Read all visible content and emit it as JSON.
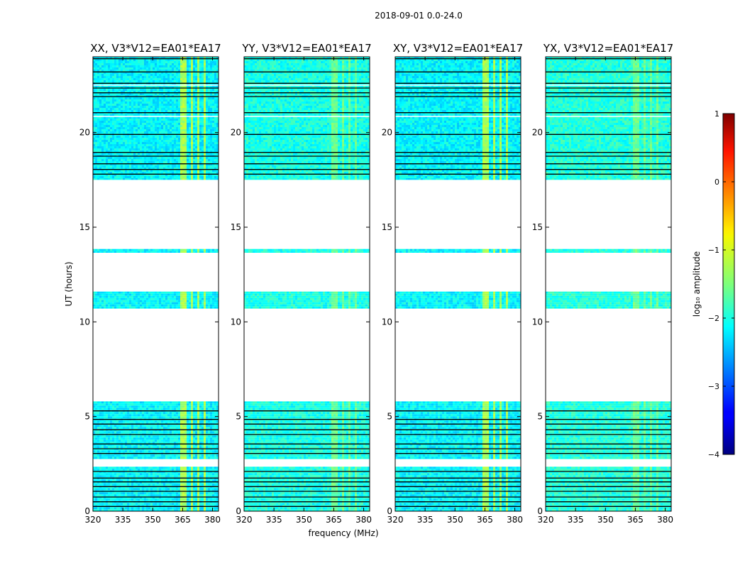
{
  "chart_data": {
    "type": "heatmap",
    "suptitle": "2018-09-01 0.0-24.0",
    "xlabel": "frequency (MHz)",
    "ylabel": "UT (hours)",
    "xlim": [
      320,
      383
    ],
    "ylim": [
      0,
      24
    ],
    "xticks": [
      "320",
      "335",
      "350",
      "365",
      "380"
    ],
    "yticks": [
      "0",
      "5",
      "10",
      "15",
      "20"
    ],
    "panels": [
      {
        "title": "XX, V3*V12=EA01*EA17",
        "base_level": -2.15,
        "rfi_level": -1.3
      },
      {
        "title": "YY, V3*V12=EA01*EA17",
        "base_level": -2.0,
        "rfi_level": -1.6
      },
      {
        "title": "XY, V3*V12=EA01*EA17",
        "base_level": -2.15,
        "rfi_level": -1.3
      },
      {
        "title": "YX, V3*V12=EA01*EA17",
        "base_level": -1.95,
        "rfi_level": -1.6
      }
    ],
    "data_ranges_hours": [
      [
        0.0,
        2.35
      ],
      [
        2.75,
        5.8
      ],
      [
        10.7,
        11.6
      ],
      [
        13.65,
        13.85
      ],
      [
        17.5,
        24.0
      ]
    ],
    "flagged_lines_hours": [
      0.25,
      0.5,
      0.75,
      1.05,
      1.3,
      1.55,
      1.75,
      2.1,
      3.05,
      3.3,
      3.55,
      4.05,
      4.3,
      4.6,
      4.85,
      5.3,
      17.8,
      18.05,
      18.35,
      18.75,
      18.95,
      19.9,
      21.05,
      21.9,
      22.1,
      22.35,
      22.6,
      23.2,
      23.9
    ],
    "rfi_bands_mhz": [
      [
        363.5,
        364.5
      ],
      [
        364.5,
        365.4
      ],
      [
        366.3,
        366.9
      ],
      [
        367.6,
        368.2
      ],
      [
        369.5,
        370.1
      ],
      [
        372.5,
        373.2
      ],
      [
        375.5,
        376.5
      ]
    ],
    "colorbar": {
      "label": "log₁₀ amplitude",
      "ticks": [
        "1",
        "0",
        "−1",
        "−2",
        "−3",
        "−4"
      ],
      "range": [
        -4,
        1
      ],
      "colormap": "jet"
    }
  }
}
